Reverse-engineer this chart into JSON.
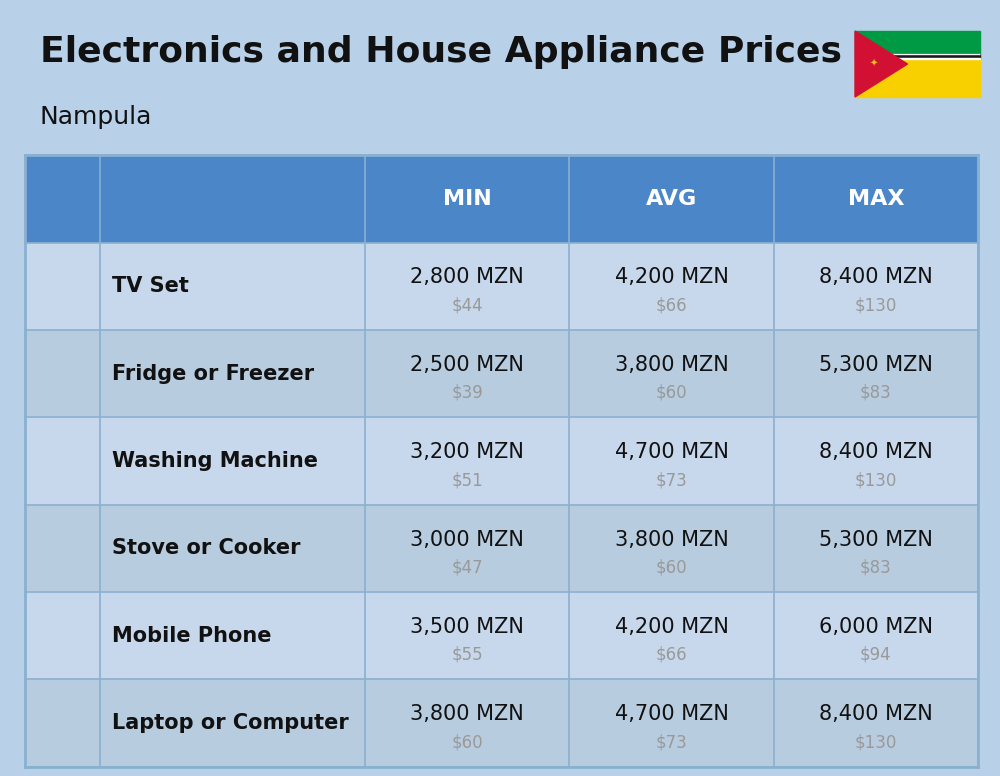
{
  "title": "Electronics and House Appliance Prices",
  "subtitle": "Nampula",
  "bg_color": "#b8d0e8",
  "header_color": "#4a86c8",
  "header_text_color": "#ffffff",
  "cell_line_color": "#8ab0d0",
  "columns": [
    "MIN",
    "AVG",
    "MAX"
  ],
  "items": [
    {
      "name": "TV Set",
      "min_mzn": "2,800 MZN",
      "min_usd": "$44",
      "avg_mzn": "4,200 MZN",
      "avg_usd": "$66",
      "max_mzn": "8,400 MZN",
      "max_usd": "$130"
    },
    {
      "name": "Fridge or Freezer",
      "min_mzn": "2,500 MZN",
      "min_usd": "$39",
      "avg_mzn": "3,800 MZN",
      "avg_usd": "$60",
      "max_mzn": "5,300 MZN",
      "max_usd": "$83"
    },
    {
      "name": "Washing Machine",
      "min_mzn": "3,200 MZN",
      "min_usd": "$51",
      "avg_mzn": "4,700 MZN",
      "avg_usd": "$73",
      "max_mzn": "8,400 MZN",
      "max_usd": "$130"
    },
    {
      "name": "Stove or Cooker",
      "min_mzn": "3,000 MZN",
      "min_usd": "$47",
      "avg_mzn": "3,800 MZN",
      "avg_usd": "$60",
      "max_mzn": "5,300 MZN",
      "max_usd": "$83"
    },
    {
      "name": "Mobile Phone",
      "min_mzn": "3,500 MZN",
      "min_usd": "$55",
      "avg_mzn": "4,200 MZN",
      "avg_usd": "$66",
      "max_mzn": "6,000 MZN",
      "max_usd": "$94"
    },
    {
      "name": "Laptop or Computer",
      "min_mzn": "3,800 MZN",
      "min_usd": "$60",
      "avg_mzn": "4,700 MZN",
      "avg_usd": "$73",
      "max_mzn": "8,400 MZN",
      "max_usd": "$130"
    }
  ],
  "title_fontsize": 26,
  "subtitle_fontsize": 18,
  "header_fontsize": 16,
  "item_name_fontsize": 15,
  "value_fontsize": 15,
  "usd_fontsize": 12,
  "usd_color": "#999999",
  "row_colors": [
    "#c8d8ec",
    "#b8cce0"
  ],
  "flag_green": "#009a44",
  "flag_black": "#1a1a1a",
  "flag_yellow": "#f8d000",
  "flag_red": "#d21034",
  "flag_white": "#ffffff"
}
